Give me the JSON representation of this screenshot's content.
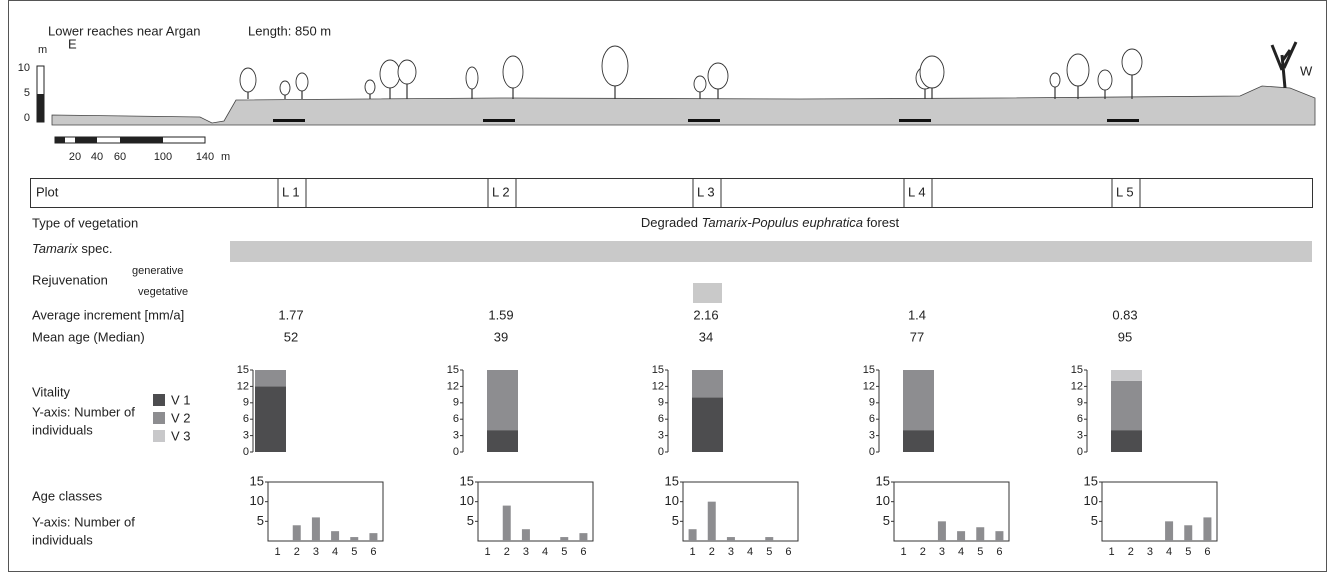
{
  "header": {
    "title": "Lower reaches near Argan",
    "length": "Length: 850 m"
  },
  "profile": {
    "unit": "m",
    "yticks": [
      "10",
      "5",
      "0"
    ],
    "east": "E",
    "west": "W",
    "scale": [
      "20",
      "40",
      "60",
      "100",
      "140"
    ],
    "scale_unit": "m"
  },
  "plots": {
    "label": "Plot",
    "names": [
      "L 1",
      "L 2",
      "L 3",
      "L 4",
      "L 5"
    ]
  },
  "vegetation": {
    "label": "Type of vegetation",
    "value": [
      "Degraded ",
      "Tamarix-Populus euphratica",
      " forest"
    ]
  },
  "tamarix": {
    "label": [
      "Tamarix",
      " spec."
    ]
  },
  "rejuvenation": {
    "label": "Rejuvenation",
    "generative": "generative",
    "vegetative": "vegetative"
  },
  "increment": {
    "label": "Average increment [mm/a]",
    "values": [
      1.77,
      1.59,
      2.16,
      1.4,
      0.83
    ]
  },
  "mean_age": {
    "label": "Mean age (Median)",
    "values": [
      52,
      39,
      34,
      77,
      95
    ]
  },
  "vitality": {
    "label": "Vitality",
    "axis_label": [
      "Y-axis: Number of",
      "individuals"
    ],
    "ylim": [
      0,
      15
    ],
    "yticks": [
      0,
      3,
      6,
      9,
      12,
      15
    ],
    "series": [
      {
        "name": "V 1",
        "color": "#4d4d4f",
        "values": [
          12,
          4,
          10,
          4,
          4
        ]
      },
      {
        "name": "V 2",
        "color": "#8d8d90",
        "values": [
          3,
          11,
          5,
          11,
          9
        ]
      },
      {
        "name": "V 3",
        "color": "#c8c8ca",
        "values": [
          0,
          0,
          0,
          0,
          2
        ]
      }
    ]
  },
  "age_classes": {
    "label": "Age classes",
    "axis_label": [
      "Y-axis: Number of",
      "individuals"
    ],
    "categories": [
      1,
      2,
      3,
      4,
      5,
      6
    ],
    "ylim": [
      0,
      15
    ],
    "yticks": [
      5,
      10,
      15
    ],
    "color": "#8d8d90",
    "plots": [
      [
        0,
        4,
        6,
        2.5,
        1,
        2
      ],
      [
        0,
        9,
        3,
        0,
        1,
        2
      ],
      [
        3,
        10,
        1,
        0,
        1,
        0
      ],
      [
        0,
        0,
        5,
        2.5,
        3.5,
        2.5
      ],
      [
        0,
        0,
        0,
        5,
        4,
        6
      ]
    ]
  }
}
